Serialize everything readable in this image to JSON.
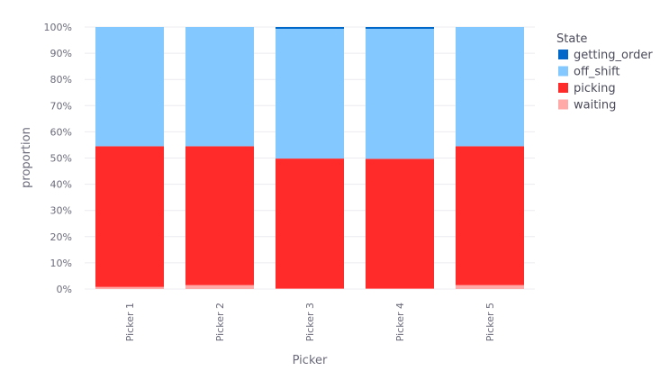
{
  "chart_data": {
    "type": "bar",
    "stacked": true,
    "categories": [
      "Picker 1",
      "Picker 2",
      "Picker 3",
      "Picker 4",
      "Picker 5"
    ],
    "series": [
      {
        "name": "waiting",
        "color": "#ffa9a9",
        "values": [
          0.8,
          1.5,
          0.2,
          0.2,
          1.5
        ]
      },
      {
        "name": "picking",
        "color": "#ff2b2b",
        "values": [
          53.7,
          53.0,
          49.6,
          49.5,
          53.0
        ]
      },
      {
        "name": "off_shift",
        "color": "#83c9ff",
        "values": [
          45.5,
          45.5,
          49.5,
          49.6,
          45.5
        ]
      },
      {
        "name": "getting_order",
        "color": "#0068c9",
        "values": [
          0.0,
          0.0,
          0.7,
          0.7,
          0.0
        ]
      }
    ],
    "legend_order": [
      "getting_order",
      "off_shift",
      "picking",
      "waiting"
    ],
    "legend_title": "State",
    "legend_position": "top-right",
    "xlabel": "Picker",
    "ylabel": "proportion",
    "ylim": [
      0,
      100
    ],
    "yticks": [
      "0%",
      "10%",
      "20%",
      "30%",
      "40%",
      "50%",
      "60%",
      "70%",
      "80%",
      "90%",
      "100%"
    ],
    "grid": true
  }
}
